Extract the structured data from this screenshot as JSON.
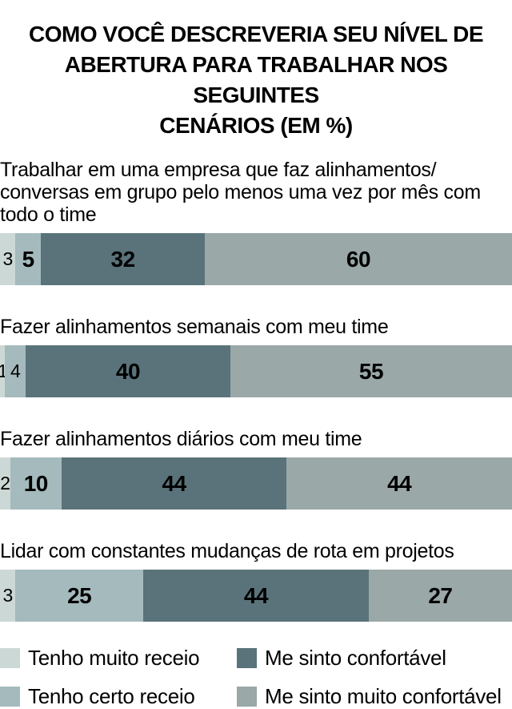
{
  "title": "COMO VOCÊ DESCREVERIA SEU NÍVEL DE\nABERTURA PARA TRABALHAR NOS SEGUINTES\nCENÁRIOS (EM %)",
  "colors": {
    "background": "#ffffff",
    "text": "#000000",
    "muito_receio": "#ccd8d5",
    "certo_receio": "#a4babd",
    "confortavel": "#5a737a",
    "muito_confortavel": "#9aa8a7"
  },
  "chart_data": {
    "type": "bar",
    "orientation": "horizontal-stacked",
    "unit": "%",
    "title": "COMO VOCÊ DESCREVERIA SEU NÍVEL DE ABERTURA PARA TRABALHAR NOS SEGUINTES CENÁRIOS (EM %)",
    "legend_position": "bottom",
    "axis_range": [
      0,
      100
    ],
    "grid": false,
    "series_labels": [
      "Tenho muito receio",
      "Tenho certo receio",
      "Me sinto confortável",
      "Me sinto muito confortável"
    ],
    "series_colors": [
      "#ccd8d5",
      "#a4babd",
      "#5a737a",
      "#9aa8a7"
    ],
    "items": [
      {
        "question": "Trabalhar em uma empresa que faz alinhamentos/\nconversas em grupo pelo menos uma vez por mês com\ntodo o time",
        "values": [
          3,
          5,
          32,
          60
        ]
      },
      {
        "question": "Fazer alinhamentos semanais com meu time",
        "values": [
          1,
          4,
          40,
          55
        ]
      },
      {
        "question": "Fazer alinhamentos diários com meu time",
        "values": [
          2,
          10,
          44,
          44
        ]
      },
      {
        "question": "Lidar com constantes mudanças de rota em projetos",
        "values": [
          3,
          25,
          44,
          27
        ]
      }
    ]
  }
}
